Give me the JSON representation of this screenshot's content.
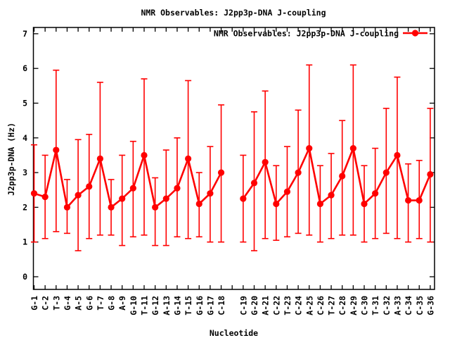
{
  "chart": {
    "title": "NMR Observables: J2pp3p-DNA J-coupling"
  },
  "chart_data": {
    "type": "line",
    "title": "NMR Observables: J2pp3p-DNA J-coupling",
    "legend": "NMR Observables: J2pp3p-DNA J-coupling",
    "legend_position": "top-right-inside",
    "xlabel": "Nucleotide",
    "ylabel": "J2pp3p-DNA (Hz)",
    "marker": "filled-circle",
    "line_color": "#ff0000",
    "axis_color": "#000000",
    "grid": false,
    "ylim": [
      -0.4,
      7.18
    ],
    "yticks": [
      0,
      1,
      2,
      3,
      4,
      5,
      6,
      7
    ],
    "gap_after_index": 17,
    "categories": [
      "G-1",
      "C-2",
      "T-3",
      "G-4",
      "A-5",
      "G-6",
      "T-7",
      "G-8",
      "A-9",
      "G-10",
      "T-11",
      "G-12",
      "A-13",
      "G-14",
      "T-15",
      "G-16",
      "G-17",
      "C-18",
      "C-19",
      "G-20",
      "A-21",
      "C-22",
      "T-23",
      "C-24",
      "A-25",
      "C-26",
      "T-27",
      "C-28",
      "A-29",
      "C-30",
      "T-31",
      "C-32",
      "A-33",
      "C-34",
      "C-35",
      "G-36"
    ],
    "values": [
      2.4,
      2.3,
      3.65,
      2.0,
      2.35,
      2.6,
      3.4,
      2.0,
      2.25,
      2.55,
      3.5,
      2.0,
      2.25,
      2.55,
      3.4,
      2.1,
      2.4,
      3.0,
      2.25,
      2.7,
      3.3,
      2.1,
      2.45,
      3.0,
      3.7,
      2.1,
      2.35,
      2.9,
      3.7,
      2.1,
      2.4,
      3.0,
      3.5,
      2.2,
      2.2,
      2.95
    ],
    "error_low": [
      1.0,
      1.1,
      1.3,
      1.25,
      0.75,
      1.1,
      1.2,
      1.2,
      0.9,
      1.15,
      1.2,
      0.9,
      0.9,
      1.15,
      1.1,
      1.15,
      1.0,
      1.0,
      1.0,
      0.75,
      1.1,
      1.05,
      1.15,
      1.25,
      1.2,
      1.0,
      1.1,
      1.2,
      1.2,
      1.0,
      1.1,
      1.25,
      1.1,
      1.0,
      1.1,
      1.0
    ],
    "error_high": [
      3.8,
      3.5,
      5.95,
      2.8,
      3.95,
      4.1,
      5.6,
      2.8,
      3.5,
      3.9,
      5.7,
      2.85,
      3.65,
      4.0,
      5.65,
      3.0,
      3.75,
      4.95,
      3.5,
      4.75,
      5.35,
      3.2,
      3.75,
      4.8,
      6.1,
      3.2,
      3.55,
      4.5,
      6.1,
      3.2,
      3.7,
      4.85,
      5.75,
      3.25,
      3.35,
      4.85
    ]
  }
}
